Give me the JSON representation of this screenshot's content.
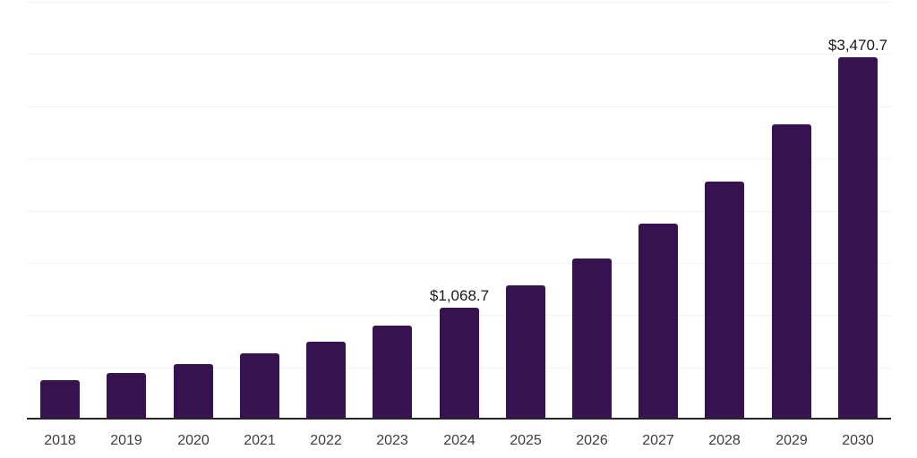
{
  "chart_data": {
    "type": "bar",
    "title": "",
    "xlabel": "",
    "ylabel": "",
    "categories": [
      "2018",
      "2019",
      "2020",
      "2021",
      "2022",
      "2023",
      "2024",
      "2025",
      "2026",
      "2027",
      "2028",
      "2029",
      "2030"
    ],
    "values": [
      379,
      448,
      534,
      637,
      749,
      896,
      1068.7,
      1283,
      1542,
      1877,
      2282,
      2825,
      3470.7
    ],
    "data_labels": {
      "2024": "$1,068.7",
      "2030": "$3,470.7"
    },
    "ylim": [
      0,
      4000
    ],
    "ytick_step": 500,
    "y_axis_labels_visible": false,
    "grid": true,
    "legend_position": "none",
    "colors": {
      "bar": "#361350",
      "gridline": "#f2f2f2",
      "axis": "#262626",
      "data_label": "#1a1a1a",
      "tick_label": "#3d3d3d",
      "background": "#ffffff"
    }
  }
}
